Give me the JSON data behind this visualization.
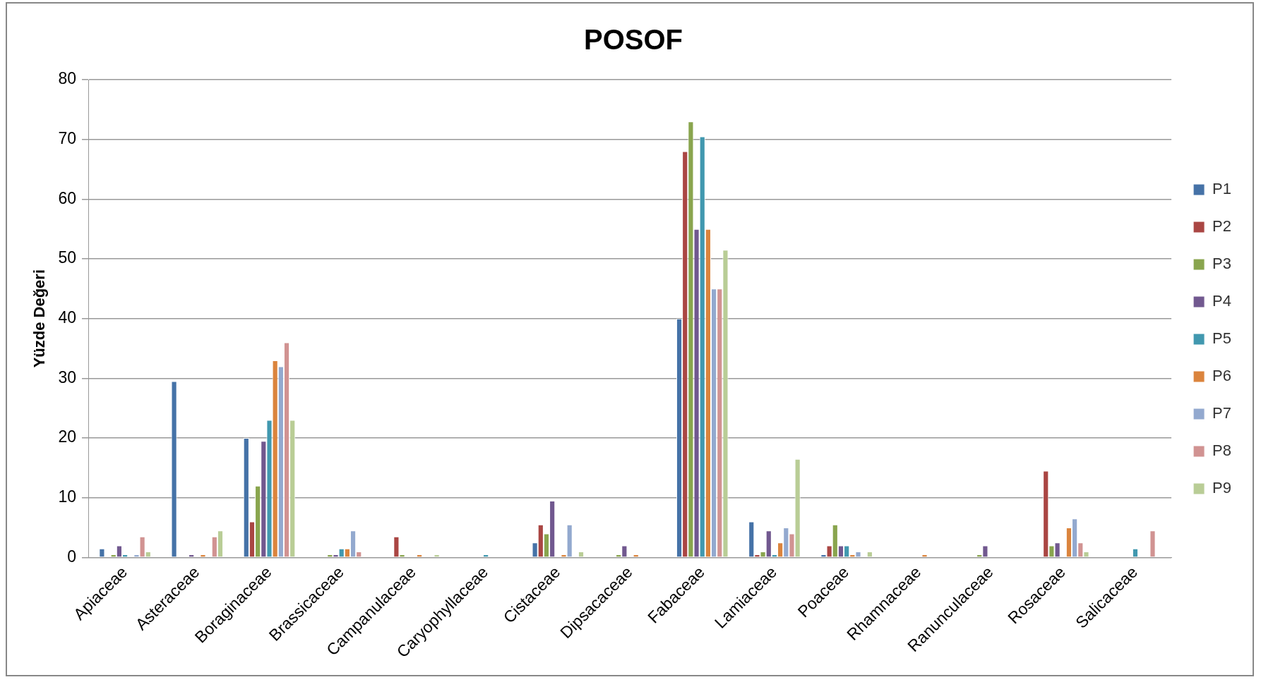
{
  "chart_data": {
    "type": "bar",
    "title": "POSOF",
    "ylabel": "Yüzde Değeri",
    "categories": [
      "Apiaceae",
      "Asteraceae",
      "Boraginaceae",
      "Brassicaceae",
      "Campanulaceae",
      "Caryophyllaceae",
      "Cistaceae",
      "Dipsacaceae",
      "Fabaceae",
      "Lamiaceae",
      "Poaceae",
      "Rhamnaceae",
      "Ranunculaceae",
      "Rosaceae",
      "Salicaceae"
    ],
    "series": [
      {
        "name": "P1",
        "color": "#4572a7",
        "values": [
          1.5,
          29.5,
          20,
          null,
          null,
          null,
          2.5,
          null,
          40,
          6,
          0.5,
          null,
          null,
          null,
          null
        ]
      },
      {
        "name": "P2",
        "color": "#aa4643",
        "values": [
          null,
          null,
          6,
          null,
          3.5,
          null,
          5.5,
          null,
          68,
          0.5,
          2,
          null,
          null,
          14.5,
          null
        ]
      },
      {
        "name": "P3",
        "color": "#89a54e",
        "values": [
          0.5,
          null,
          12,
          0.5,
          0.5,
          null,
          4,
          0.5,
          73,
          1,
          5.5,
          null,
          0.5,
          2,
          null
        ]
      },
      {
        "name": "P4",
        "color": "#71588f",
        "values": [
          2,
          0.5,
          19.5,
          0.5,
          null,
          null,
          9.5,
          2,
          55,
          4.5,
          2,
          null,
          2,
          2.5,
          null
        ]
      },
      {
        "name": "P5",
        "color": "#4198af",
        "values": [
          0.5,
          null,
          23,
          1.5,
          null,
          0.5,
          null,
          null,
          70.5,
          0.5,
          2,
          null,
          null,
          null,
          1.5
        ]
      },
      {
        "name": "P6",
        "color": "#db843d",
        "values": [
          null,
          0.5,
          33,
          1.5,
          0.5,
          null,
          0.5,
          0.5,
          55,
          2.5,
          0.5,
          0.5,
          null,
          5,
          null
        ]
      },
      {
        "name": "P7",
        "color": "#93a9cf",
        "values": [
          0.5,
          null,
          32,
          4.5,
          null,
          null,
          5.5,
          null,
          45,
          5,
          1,
          null,
          null,
          6.5,
          null
        ]
      },
      {
        "name": "P8",
        "color": "#d19392",
        "values": [
          3.5,
          3.5,
          36,
          1,
          null,
          null,
          null,
          null,
          45,
          4,
          null,
          null,
          null,
          2.5,
          4.5
        ]
      },
      {
        "name": "P9",
        "color": "#b9cd96",
        "values": [
          1,
          4.5,
          23,
          null,
          0.5,
          null,
          1,
          null,
          51.5,
          16.5,
          1,
          null,
          null,
          1,
          null
        ]
      }
    ],
    "ylim": [
      0,
      80
    ],
    "yticks": [
      0,
      10,
      20,
      30,
      40,
      50,
      60,
      70,
      80
    ],
    "grid": "y",
    "legend": "right"
  }
}
